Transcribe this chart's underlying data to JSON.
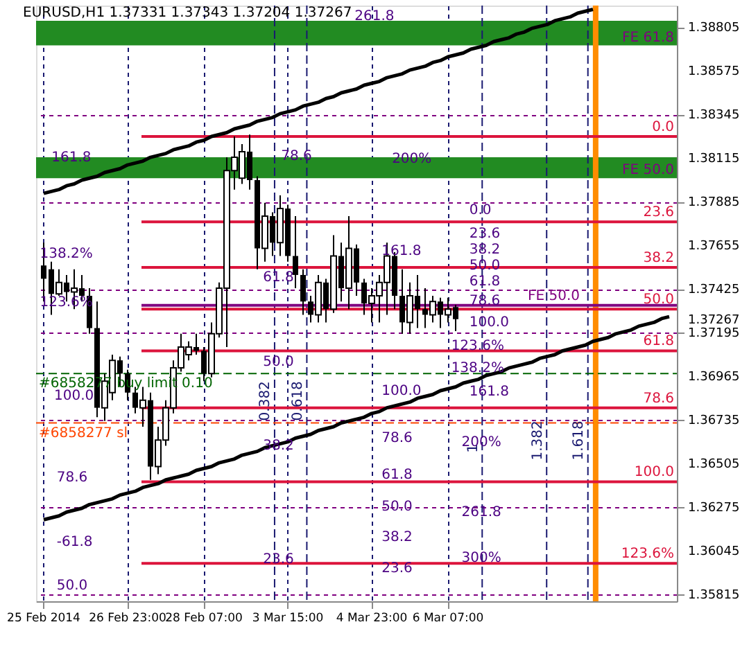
{
  "chart_data": {
    "type": "candlestick",
    "title": "EURUSD,H1  1.37331 1.37343 1.37204 1.37267",
    "categories": [
      "25 Feb 2014",
      null,
      null,
      null,
      null,
      null,
      null,
      null,
      null,
      null,
      null,
      "26 Feb 23:00",
      null,
      null,
      null,
      null,
      null,
      null,
      null,
      null,
      null,
      "28 Feb 07:00",
      null,
      null,
      null,
      null,
      null,
      null,
      null,
      null,
      null,
      null,
      "3 Mar 15:00",
      null,
      null,
      null,
      null,
      null,
      null,
      null,
      null,
      null,
      null,
      "4 Mar 23:00",
      null,
      null,
      null,
      null,
      null,
      null,
      null,
      null,
      null,
      "6 Mar 07:00",
      null,
      null,
      null,
      null,
      null,
      null,
      null,
      null,
      null,
      null,
      null,
      null,
      null,
      null,
      null,
      null,
      null,
      null,
      null,
      null,
      null,
      null,
      null,
      null,
      null,
      null,
      null,
      null,
      null
    ],
    "ohlc": [
      [
        1.3755,
        1.3767,
        1.3736,
        1.3748
      ],
      [
        1.3753,
        1.3757,
        1.3729,
        1.374
      ],
      [
        1.374,
        1.3753,
        1.3739,
        1.3746
      ],
      [
        1.3746,
        1.375,
        1.3736,
        1.3741
      ],
      [
        1.3741,
        1.3753,
        1.3732,
        1.3743
      ],
      [
        1.3743,
        1.375,
        1.3736,
        1.3739
      ],
      [
        1.3739,
        1.3743,
        1.3719,
        1.3722
      ],
      [
        1.3722,
        1.3736,
        1.3675,
        1.368
      ],
      [
        1.368,
        1.3698,
        1.3673,
        1.3694
      ],
      [
        1.3688,
        1.3708,
        1.3684,
        1.3705
      ],
      [
        1.3705,
        1.3707,
        1.3691,
        1.3698
      ],
      [
        1.3698,
        1.37,
        1.3684,
        1.3688
      ],
      [
        1.3688,
        1.3691,
        1.3677,
        1.368
      ],
      [
        1.368,
        1.3691,
        1.367,
        1.3684
      ],
      [
        1.3684,
        1.3688,
        1.3642,
        1.3649
      ],
      [
        1.3649,
        1.367,
        1.3645,
        1.3663
      ],
      [
        1.3663,
        1.3684,
        1.366,
        1.368
      ],
      [
        1.368,
        1.3705,
        1.3677,
        1.3701
      ],
      [
        1.3701,
        1.3719,
        1.3699,
        1.3712
      ],
      [
        1.3708,
        1.3715,
        1.3705,
        1.3712
      ],
      [
        1.3712,
        1.3719,
        1.3708,
        1.371
      ],
      [
        1.371,
        1.3712,
        1.3694,
        1.3698
      ],
      [
        1.3698,
        1.3725,
        1.3696,
        1.3719
      ],
      [
        1.3719,
        1.3746,
        1.3717,
        1.3743
      ],
      [
        1.3743,
        1.3812,
        1.3712,
        1.3805
      ],
      [
        1.3805,
        1.3823,
        1.3795,
        1.3812
      ],
      [
        1.3801,
        1.3819,
        1.3798,
        1.3815
      ],
      [
        1.3815,
        1.3824,
        1.3795,
        1.38
      ],
      [
        1.38,
        1.3802,
        1.3753,
        1.3764
      ],
      [
        1.3764,
        1.3788,
        1.3757,
        1.3781
      ],
      [
        1.3781,
        1.3783,
        1.376,
        1.3767
      ],
      [
        1.3767,
        1.3792,
        1.376,
        1.3785
      ],
      [
        1.3785,
        1.3787,
        1.3757,
        1.376
      ],
      [
        1.376,
        1.3781,
        1.3743,
        1.375
      ],
      [
        1.375,
        1.3753,
        1.3729,
        1.3736
      ],
      [
        1.3736,
        1.3739,
        1.3725,
        1.3729
      ],
      [
        1.3729,
        1.375,
        1.3725,
        1.3746
      ],
      [
        1.3746,
        1.3748,
        1.3725,
        1.3732
      ],
      [
        1.3732,
        1.3771,
        1.373,
        1.376
      ],
      [
        1.376,
        1.3767,
        1.3736,
        1.3743
      ],
      [
        1.3743,
        1.3781,
        1.3732,
        1.3764
      ],
      [
        1.3764,
        1.3766,
        1.3739,
        1.3746
      ],
      [
        1.3746,
        1.3748,
        1.3729,
        1.3735
      ],
      [
        1.3735,
        1.3743,
        1.3725,
        1.3739
      ],
      [
        1.3739,
        1.375,
        1.3725,
        1.3746
      ],
      [
        1.3746,
        1.3767,
        1.3729,
        1.376
      ],
      [
        1.376,
        1.3762,
        1.3732,
        1.3739
      ],
      [
        1.3739,
        1.3753,
        1.3719,
        1.3725
      ],
      [
        1.3725,
        1.3746,
        1.3719,
        1.3739
      ],
      [
        1.3739,
        1.375,
        1.3722,
        1.3732
      ],
      [
        1.3732,
        1.3743,
        1.3722,
        1.3729
      ],
      [
        1.3729,
        1.3739,
        1.3725,
        1.3736
      ],
      [
        1.3736,
        1.3738,
        1.3722,
        1.3729
      ],
      [
        1.3729,
        1.3738,
        1.3725,
        1.3732
      ],
      [
        1.37331,
        1.37343,
        1.37204,
        1.37267
      ],
      null,
      null,
      null,
      null,
      null,
      null,
      null,
      null,
      null,
      null,
      null,
      null,
      null,
      null,
      null,
      null,
      null,
      null,
      null,
      null,
      null,
      null,
      null,
      null,
      null,
      null,
      null,
      null
    ],
    "color": "#000000",
    "series": [
      {
        "type": "line",
        "color": "#000000",
        "values": [
          1.3793,
          1.3794,
          1.3795,
          1.3797,
          1.3798,
          1.38,
          1.3801,
          1.3802,
          1.3804,
          1.3805,
          1.3806,
          1.3808,
          1.3809,
          1.381,
          1.3812,
          1.3813,
          1.3814,
          1.3816,
          1.3817,
          1.3818,
          1.382,
          1.3821,
          1.3823,
          1.3824,
          1.3825,
          1.3827,
          1.3828,
          1.3829,
          1.3831,
          1.3832,
          1.3833,
          1.3835,
          1.3836,
          1.3837,
          1.3839,
          1.384,
          1.3841,
          1.3843,
          1.3844,
          1.3846,
          1.3847,
          1.3848,
          1.385,
          1.3851,
          1.3852,
          1.3854,
          1.3855,
          1.3856,
          1.3858,
          1.3859,
          1.386,
          1.3862,
          1.3863,
          1.3865,
          1.3866,
          1.3867,
          1.3869,
          1.387,
          1.3871,
          1.3873,
          1.3874,
          1.3875,
          1.3877,
          1.3878,
          1.388,
          1.3881,
          1.3882,
          1.3884,
          1.3885,
          1.3886,
          1.3888,
          1.3889,
          1.389,
          null,
          null,
          null,
          null,
          null,
          null,
          null,
          null,
          null,
          null
        ]
      },
      {
        "type": "line",
        "color": "#000000",
        "values": [
          1.3621,
          1.3622,
          1.3623,
          1.3625,
          1.3626,
          1.3627,
          1.3629,
          1.363,
          1.3631,
          1.3632,
          1.3634,
          1.3635,
          1.3636,
          1.3638,
          1.3639,
          1.364,
          1.3642,
          1.3643,
          1.3644,
          1.3645,
          1.3647,
          1.3648,
          1.3649,
          1.3651,
          1.3652,
          1.3653,
          1.3655,
          1.3656,
          1.3657,
          1.3659,
          1.366,
          1.3661,
          1.3662,
          1.3664,
          1.3665,
          1.3666,
          1.3668,
          1.3669,
          1.367,
          1.3672,
          1.3673,
          1.3674,
          1.3675,
          1.3677,
          1.3678,
          1.368,
          1.3681,
          1.3682,
          1.3683,
          1.3685,
          1.3686,
          1.3687,
          1.3689,
          1.369,
          1.3691,
          1.3693,
          1.3694,
          1.3695,
          1.3697,
          1.3698,
          1.3699,
          1.3701,
          1.3702,
          1.3703,
          1.3704,
          1.3706,
          1.3707,
          1.3708,
          1.371,
          1.3711,
          1.3712,
          1.3713,
          1.3715,
          1.3716,
          1.3717,
          1.3719,
          1.372,
          1.3721,
          1.3723,
          1.3724,
          1.3725,
          1.3727,
          1.3728
        ]
      }
    ],
    "ylim": [
      1.3578,
      1.3892
    ],
    "yticks": [
      1.35815,
      1.36045,
      1.36275,
      1.36505,
      1.36735,
      1.36965,
      1.37195,
      1.37267,
      1.37425,
      1.37655,
      1.37885,
      1.38115,
      1.38345,
      1.38575,
      1.38805
    ],
    "grid": true,
    "bands": [
      {
        "axis": "y",
        "from": 1.3871,
        "to": 1.3884,
        "label": "FE 61.8",
        "color": "#228b22"
      },
      {
        "axis": "y",
        "from": 1.3801,
        "to": 1.3812,
        "label": "FE 50.0",
        "color": "#228b22"
      }
    ],
    "ref_lines": [
      {
        "axis": "y",
        "value": 1.3823,
        "color": "#dc143c",
        "line_style": "solid"
      },
      {
        "axis": "y",
        "value": 1.3778,
        "color": "#dc143c",
        "line_style": "solid"
      },
      {
        "axis": "y",
        "value": 1.3754,
        "color": "#dc143c",
        "line_style": "solid"
      },
      {
        "axis": "y",
        "value": 1.3734,
        "label": "FE 50.0",
        "color": "#800080",
        "line_style": "solid"
      },
      {
        "axis": "y",
        "value": 1.3732,
        "color": "#dc143c",
        "line_style": "solid"
      },
      {
        "axis": "y",
        "value": 1.371,
        "color": "#dc143c",
        "line_style": "solid"
      },
      {
        "axis": "y",
        "value": 1.3698,
        "label": "#6858277 buy limit 0.10",
        "color": "#006400",
        "line_style": "dashed"
      },
      {
        "axis": "y",
        "value": 1.368,
        "color": "#dc143c",
        "line_style": "solid"
      },
      {
        "axis": "y",
        "value": 1.3672,
        "label": "#6858277 sl",
        "color": "#ff4500",
        "line_style": "dashed"
      },
      {
        "axis": "y",
        "value": 1.3641,
        "color": "#dc143c",
        "line_style": "solid"
      },
      {
        "axis": "y",
        "value": 1.3598,
        "color": "#dc143c",
        "line_style": "solid"
      }
    ],
    "annotations": [
      {
        "text": "0.0",
        "y": 1.3823
      },
      {
        "text": "23.6",
        "y": 1.3778
      },
      {
        "text": "38.2",
        "y": 1.3754
      },
      {
        "text": "50.0",
        "y": 1.3732
      },
      {
        "text": "61.8",
        "y": 1.371
      },
      {
        "text": "78.6",
        "y": 1.368
      },
      {
        "text": "100.0",
        "y": 1.3641
      },
      {
        "text": "123.6%",
        "y": 1.3598
      },
      "161.8",
      "138.2%",
      "123.6%",
      "100.0",
      "78.6",
      "-61.8",
      "50.0",
      "78.6",
      "261.8",
      "200%",
      "61.8",
      "50.0",
      "38.2",
      "23.6",
      "161.8",
      "100.0",
      "78.6",
      "61.8",
      "50.0",
      "38.2",
      "23.6",
      "0.0",
      "23.6",
      "38.2",
      "50.0",
      "61.8",
      "78.6",
      "100.0",
      "123.6%",
      "138.2%",
      "161.8",
      "200%",
      "261.8",
      "300%",
      "0.382",
      "0.618",
      "1",
      "1.382",
      "1.618"
    ]
  }
}
